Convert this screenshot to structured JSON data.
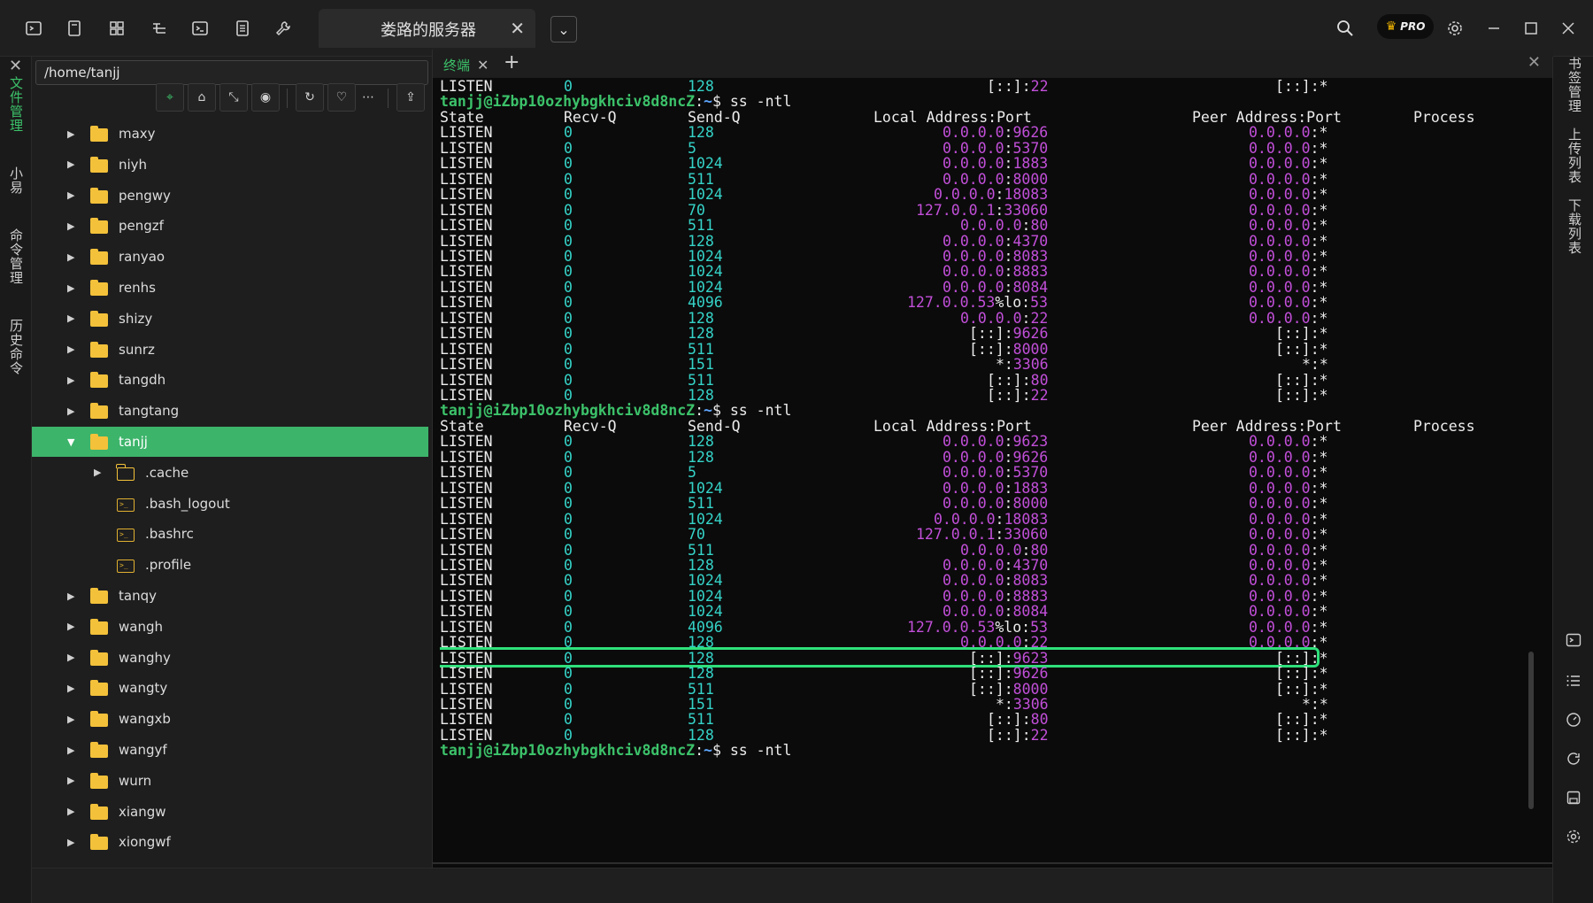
{
  "topbar": {
    "server_tab_label": "娄路的服务器",
    "pro_label": "PRO"
  },
  "left_rail": {
    "items": [
      "文件管理",
      "小易",
      "命令管理",
      "历史命令"
    ]
  },
  "file_panel": {
    "path": "/home/tanjj"
  },
  "tree": [
    {
      "label": "maxy",
      "type": "folder",
      "level": 0
    },
    {
      "label": "niyh",
      "type": "folder",
      "level": 0
    },
    {
      "label": "pengwy",
      "type": "folder",
      "level": 0
    },
    {
      "label": "pengzf",
      "type": "folder",
      "level": 0
    },
    {
      "label": "ranyao",
      "type": "folder",
      "level": 0
    },
    {
      "label": "renhs",
      "type": "folder",
      "level": 0
    },
    {
      "label": "shizy",
      "type": "folder",
      "level": 0
    },
    {
      "label": "sunrz",
      "type": "folder",
      "level": 0
    },
    {
      "label": "tangdh",
      "type": "folder",
      "level": 0
    },
    {
      "label": "tangtang",
      "type": "folder",
      "level": 0
    },
    {
      "label": "tanjj",
      "type": "folder",
      "level": 0,
      "expanded": true,
      "selected": true
    },
    {
      "label": ".cache",
      "type": "folder-outline",
      "level": 1
    },
    {
      "label": ".bash_logout",
      "type": "file",
      "level": 1
    },
    {
      "label": ".bashrc",
      "type": "file",
      "level": 1
    },
    {
      "label": ".profile",
      "type": "file",
      "level": 1
    },
    {
      "label": "tanqy",
      "type": "folder",
      "level": 0
    },
    {
      "label": "wangh",
      "type": "folder",
      "level": 0
    },
    {
      "label": "wanghy",
      "type": "folder",
      "level": 0
    },
    {
      "label": "wangty",
      "type": "folder",
      "level": 0
    },
    {
      "label": "wangxb",
      "type": "folder",
      "level": 0
    },
    {
      "label": "wangyf",
      "type": "folder",
      "level": 0
    },
    {
      "label": "wurn",
      "type": "folder",
      "level": 0
    },
    {
      "label": "xiangw",
      "type": "folder",
      "level": 0
    },
    {
      "label": "xiongwf",
      "type": "folder",
      "level": 0
    }
  ],
  "terminal": {
    "tab_label": "终端",
    "prompt_user": "tanjj@iZbp10ozhybgkhciv8d8ncZ",
    "prompt_sep": ":",
    "prompt_path": "~",
    "prompt_end": "$ ",
    "command": "ss -ntl",
    "headers": [
      "State",
      "Recv-Q",
      "Send-Q",
      "Local Address:Port",
      "Peer Address:Port",
      "Process"
    ],
    "lines": [
      {
        "t": "r",
        "s": "LISTEN",
        "r": "0",
        "q": "128",
        "l": "[::]:22",
        "p": "[::]:*"
      },
      {
        "t": "p"
      },
      {
        "t": "h"
      },
      {
        "t": "r",
        "s": "LISTEN",
        "r": "0",
        "q": "128",
        "l": "0.0.0.0:9626",
        "p": "0.0.0.0:*"
      },
      {
        "t": "r",
        "s": "LISTEN",
        "r": "0",
        "q": "5",
        "l": "0.0.0.0:5370",
        "p": "0.0.0.0:*"
      },
      {
        "t": "r",
        "s": "LISTEN",
        "r": "0",
        "q": "1024",
        "l": "0.0.0.0:1883",
        "p": "0.0.0.0:*"
      },
      {
        "t": "r",
        "s": "LISTEN",
        "r": "0",
        "q": "511",
        "l": "0.0.0.0:8000",
        "p": "0.0.0.0:*"
      },
      {
        "t": "r",
        "s": "LISTEN",
        "r": "0",
        "q": "1024",
        "l": "0.0.0.0:18083",
        "p": "0.0.0.0:*"
      },
      {
        "t": "r",
        "s": "LISTEN",
        "r": "0",
        "q": "70",
        "l": "127.0.0.1:33060",
        "p": "0.0.0.0:*"
      },
      {
        "t": "r",
        "s": "LISTEN",
        "r": "0",
        "q": "511",
        "l": "0.0.0.0:80",
        "p": "0.0.0.0:*"
      },
      {
        "t": "r",
        "s": "LISTEN",
        "r": "0",
        "q": "128",
        "l": "0.0.0.0:4370",
        "p": "0.0.0.0:*"
      },
      {
        "t": "r",
        "s": "LISTEN",
        "r": "0",
        "q": "1024",
        "l": "0.0.0.0:8083",
        "p": "0.0.0.0:*"
      },
      {
        "t": "r",
        "s": "LISTEN",
        "r": "0",
        "q": "1024",
        "l": "0.0.0.0:8883",
        "p": "0.0.0.0:*"
      },
      {
        "t": "r",
        "s": "LISTEN",
        "r": "0",
        "q": "1024",
        "l": "0.0.0.0:8084",
        "p": "0.0.0.0:*"
      },
      {
        "t": "r",
        "s": "LISTEN",
        "r": "0",
        "q": "4096",
        "l": "127.0.0.53%lo:53",
        "p": "0.0.0.0:*"
      },
      {
        "t": "r",
        "s": "LISTEN",
        "r": "0",
        "q": "128",
        "l": "0.0.0.0:22",
        "p": "0.0.0.0:*"
      },
      {
        "t": "r",
        "s": "LISTEN",
        "r": "0",
        "q": "128",
        "l": "[::]:9626",
        "p": "[::]:*"
      },
      {
        "t": "r",
        "s": "LISTEN",
        "r": "0",
        "q": "511",
        "l": "[::]:8000",
        "p": "[::]:*"
      },
      {
        "t": "r",
        "s": "LISTEN",
        "r": "0",
        "q": "151",
        "l": "*:3306",
        "p": "*:*"
      },
      {
        "t": "r",
        "s": "LISTEN",
        "r": "0",
        "q": "511",
        "l": "[::]:80",
        "p": "[::]:*"
      },
      {
        "t": "r",
        "s": "LISTEN",
        "r": "0",
        "q": "128",
        "l": "[::]:22",
        "p": "[::]:*"
      },
      {
        "t": "p"
      },
      {
        "t": "h"
      },
      {
        "t": "r",
        "s": "LISTEN",
        "r": "0",
        "q": "128",
        "l": "0.0.0.0:9623",
        "p": "0.0.0.0:*"
      },
      {
        "t": "r",
        "s": "LISTEN",
        "r": "0",
        "q": "128",
        "l": "0.0.0.0:9626",
        "p": "0.0.0.0:*"
      },
      {
        "t": "r",
        "s": "LISTEN",
        "r": "0",
        "q": "5",
        "l": "0.0.0.0:5370",
        "p": "0.0.0.0:*"
      },
      {
        "t": "r",
        "s": "LISTEN",
        "r": "0",
        "q": "1024",
        "l": "0.0.0.0:1883",
        "p": "0.0.0.0:*"
      },
      {
        "t": "r",
        "s": "LISTEN",
        "r": "0",
        "q": "511",
        "l": "0.0.0.0:8000",
        "p": "0.0.0.0:*"
      },
      {
        "t": "r",
        "s": "LISTEN",
        "r": "0",
        "q": "1024",
        "l": "0.0.0.0:18083",
        "p": "0.0.0.0:*"
      },
      {
        "t": "r",
        "s": "LISTEN",
        "r": "0",
        "q": "70",
        "l": "127.0.0.1:33060",
        "p": "0.0.0.0:*"
      },
      {
        "t": "r",
        "s": "LISTEN",
        "r": "0",
        "q": "511",
        "l": "0.0.0.0:80",
        "p": "0.0.0.0:*"
      },
      {
        "t": "r",
        "s": "LISTEN",
        "r": "0",
        "q": "128",
        "l": "0.0.0.0:4370",
        "p": "0.0.0.0:*"
      },
      {
        "t": "r",
        "s": "LISTEN",
        "r": "0",
        "q": "1024",
        "l": "0.0.0.0:8083",
        "p": "0.0.0.0:*"
      },
      {
        "t": "r",
        "s": "LISTEN",
        "r": "0",
        "q": "1024",
        "l": "0.0.0.0:8883",
        "p": "0.0.0.0:*"
      },
      {
        "t": "r",
        "s": "LISTEN",
        "r": "0",
        "q": "1024",
        "l": "0.0.0.0:8084",
        "p": "0.0.0.0:*"
      },
      {
        "t": "r",
        "s": "LISTEN",
        "r": "0",
        "q": "4096",
        "l": "127.0.0.53%lo:53",
        "p": "0.0.0.0:*"
      },
      {
        "t": "r",
        "s": "LISTEN",
        "r": "0",
        "q": "128",
        "l": "0.0.0.0:22",
        "p": "0.0.0.0:*"
      },
      {
        "t": "r",
        "s": "LISTEN",
        "r": "0",
        "q": "128",
        "l": "[::]:9623",
        "p": "[::]:*",
        "hl": true
      },
      {
        "t": "r",
        "s": "LISTEN",
        "r": "0",
        "q": "128",
        "l": "[::]:9626",
        "p": "[::]:*"
      },
      {
        "t": "r",
        "s": "LISTEN",
        "r": "0",
        "q": "511",
        "l": "[::]:8000",
        "p": "[::]:*"
      },
      {
        "t": "r",
        "s": "LISTEN",
        "r": "0",
        "q": "151",
        "l": "*:3306",
        "p": "*:*"
      },
      {
        "t": "r",
        "s": "LISTEN",
        "r": "0",
        "q": "511",
        "l": "[::]:80",
        "p": "[::]:*"
      },
      {
        "t": "r",
        "s": "LISTEN",
        "r": "0",
        "q": "128",
        "l": "[::]:22",
        "p": "[::]:*"
      },
      {
        "t": "p"
      }
    ]
  },
  "right_rail": {
    "items": [
      "书签管理",
      "上传列表",
      "下载列表"
    ]
  },
  "colors": {
    "accent_green": "#3cb46a",
    "state_white": "#ececec",
    "queue_cyan": "#35d3c8",
    "address_magenta": "#c24fd9",
    "highlight_box": "#2ee07a"
  }
}
